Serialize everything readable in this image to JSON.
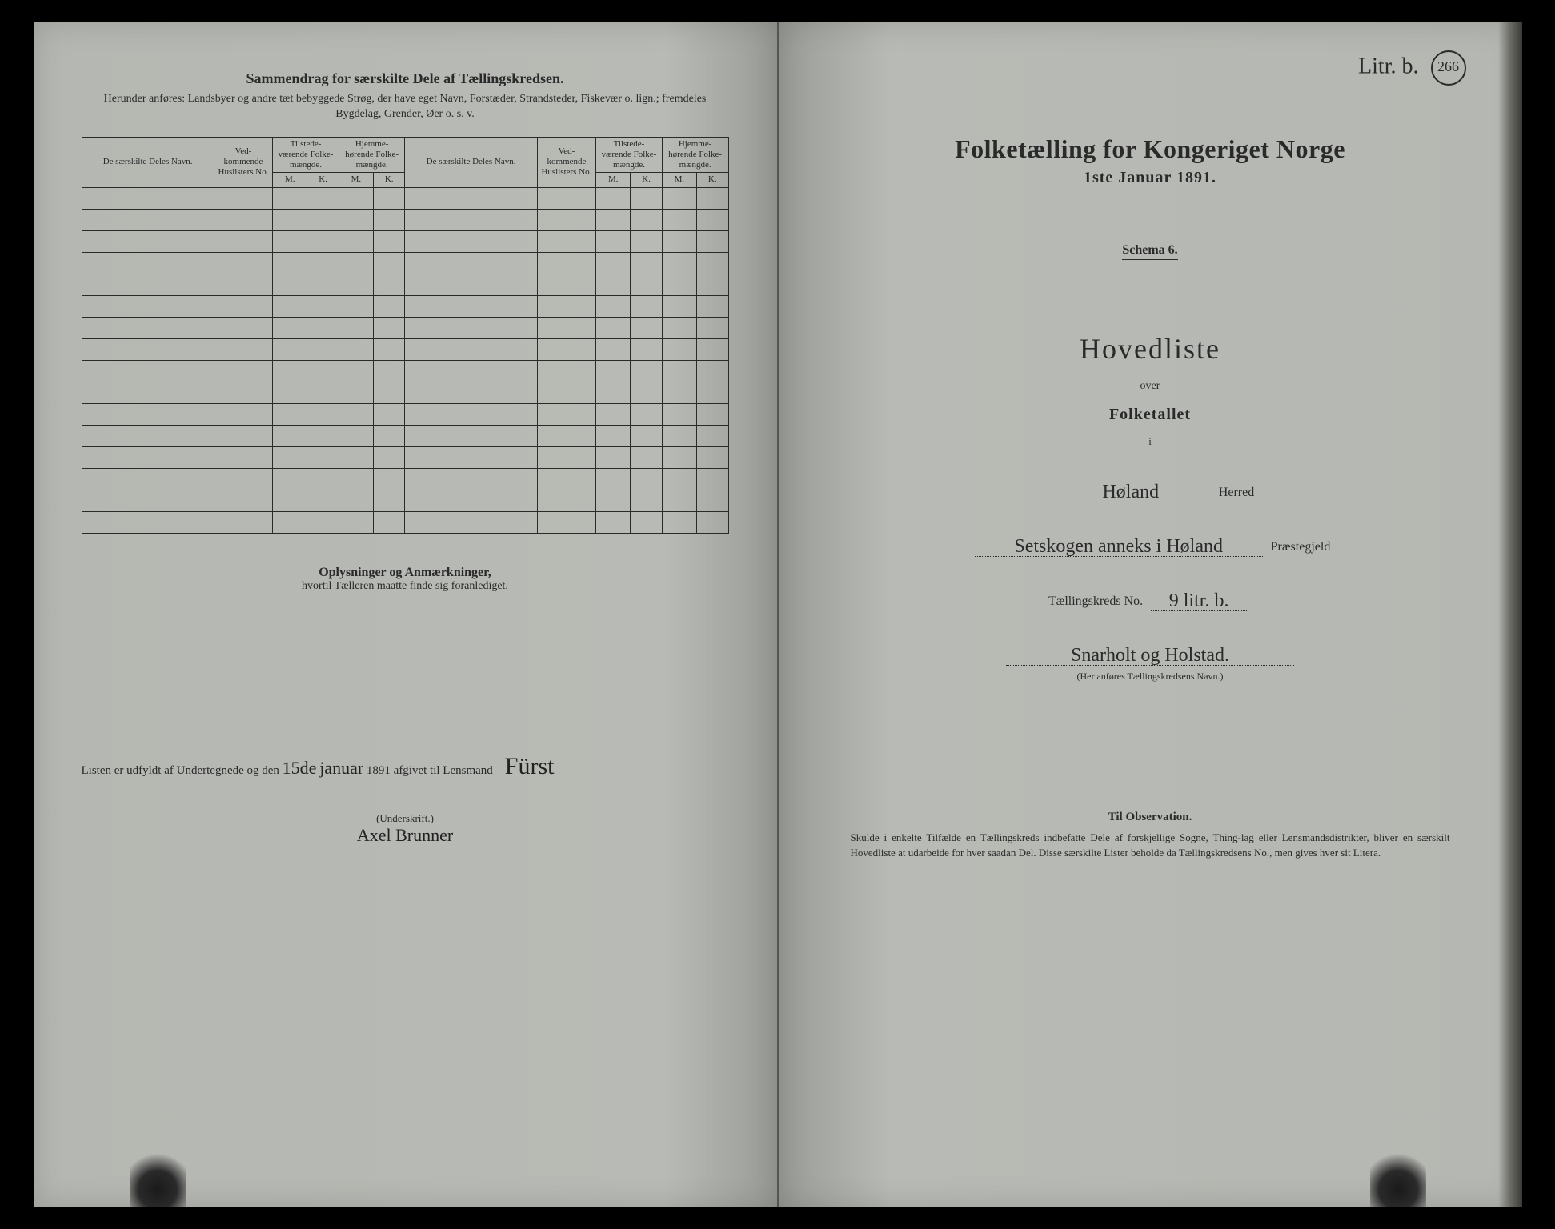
{
  "left": {
    "section_title": "Sammendrag for særskilte Dele af Tællingskredsen.",
    "section_sub": "Herunder anføres: Landsbyer og andre tæt bebyggede Strøg, der have eget Navn, Forstæder, Strandsteder, Fiskevær o. lign.; fremdeles Bygdelag, Grender, Øer o. s. v.",
    "col_name": "De særskilte Deles Navn.",
    "col_huslist": "Ved-\nkommende\nHuslisters\nNo.",
    "col_tilstede": "Tilstede-\nværende\nFolke-\nmængde.",
    "col_hjemme": "Hjemme-\nhørende\nFolke-\nmængde.",
    "col_m": "M.",
    "col_k": "K.",
    "row_count": 16,
    "notes_title": "Oplysninger og Anmærkninger,",
    "notes_sub": "hvortil Tælleren maatte finde sig foranlediget.",
    "sig_prefix": "Listen er udfyldt af Undertegnede og den",
    "sig_date_day": "15de",
    "sig_date_month": "januar",
    "sig_year": "1891 afgivet til Lensmand",
    "sig_name": "Fürst",
    "underscript": "(Underskrift.)",
    "sig2": "Axel Brunner"
  },
  "right": {
    "mark_text": "Litr. b.",
    "mark_num": "266",
    "title": "Folketælling for Kongeriget Norge",
    "date": "1ste Januar 1891.",
    "schema": "Schema 6.",
    "hovedliste": "Hovedliste",
    "over": "over",
    "folketallet": "Folketallet",
    "small_i": "i",
    "herred_value": "Høland",
    "herred_label": "Herred",
    "praeste_value": "Setskogen anneks i Høland",
    "praeste_label": "Præstegjeld",
    "kreds_label": "Tællingskreds No.",
    "kreds_value": "9 litr. b.",
    "kreds_name": "Snarholt og Holstad.",
    "kreds_paren": "(Her anføres Tællingskredsens Navn.)",
    "obs_title": "Til Observation.",
    "obs_text": "Skulde i enkelte Tilfælde en Tællingskreds indbefatte Dele af forskjellige Sogne, Thing-lag eller Lensmandsdistrikter, bliver en særskilt Hovedliste at udarbeide for hver saadan Del. Disse særskilte Lister beholde da Tællingskredsens No., men gives hver sit Litera."
  },
  "colors": {
    "page_bg": "#b8bab5",
    "text": "#2a2a2a",
    "border": "#2a2a2a"
  }
}
